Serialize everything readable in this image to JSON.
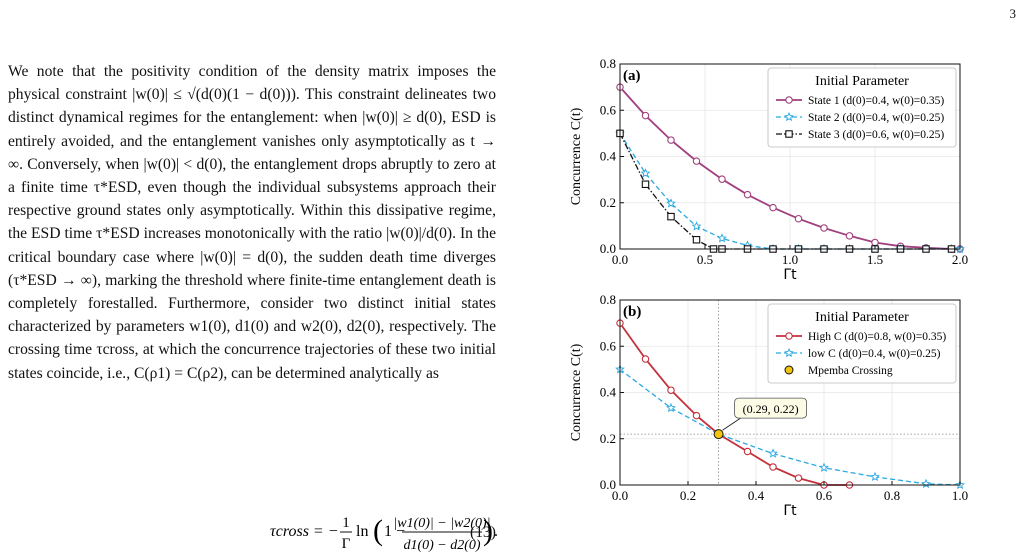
{
  "page_number": "3",
  "paragraph": "We note that the positivity condition of the density matrix imposes the physical constraint |w(0)| ≤ √(d(0)(1 − d(0))). This constraint delineates two distinct dynamical regimes for the entanglement: when |w(0)| ≥ d(0), ESD is entirely avoided, and the entanglement vanishes only asymptotically as t → ∞. Conversely, when |w(0)| < d(0), the entanglement drops abruptly to zero at a finite time τ*ESD, even though the individual subsystems approach their respective ground states only asymptotically. Within this dissipative regime, the ESD time τ*ESD increases monotonically with the ratio |w(0)|/d(0). In the critical boundary case where |w(0)| = d(0), the sudden death time diverges (τ*ESD → ∞), marking the threshold where finite-time entanglement death is completely forestalled. Furthermore, consider two distinct initial states characterized by parameters w1(0), d1(0) and w2(0), d2(0), respectively. The crossing time τcross, at which the concurrence trajectories of these two initial states coincide, i.e., C(ρ1) = C(ρ2), can be determined analytically as",
  "equation": {
    "lhs": "τcross = −",
    "frac_num": "1",
    "frac_den": "Γ",
    "ln": "ln",
    "inner_one": "1 −",
    "inner_num": "|w1(0)| − |w2(0)|",
    "inner_den": "d1(0) − d2(0)",
    "tail": ".",
    "number": "(13)"
  },
  "colors": {
    "state1": "#a0407e",
    "state2": "#2aa8e0",
    "state3": "#111111",
    "high_c": "#c4303c",
    "low_c": "#2aa8e0",
    "mpemba_fill": "#f2c40f",
    "annotation_bg": "#fbfbe6"
  },
  "chart_data": [
    {
      "type": "line",
      "panel_label": "(a)",
      "xlabel": "Γt",
      "ylabel": "Concurrence C(t)",
      "xlim": [
        0,
        2.0
      ],
      "ylim": [
        0,
        0.8
      ],
      "xticks": [
        "0.0",
        "0.5",
        "1.0",
        "1.5",
        "2.0"
      ],
      "yticks": [
        "0.0",
        "0.2",
        "0.4",
        "0.6",
        "0.8"
      ],
      "grid": true,
      "legend_title": "Initial Parameter",
      "legend_position": "top-right",
      "series": [
        {
          "name": "State 1 (d(0)=0.4, w(0)=0.35)",
          "marker": "circle",
          "style": "solid",
          "color_key": "state1",
          "x": [
            0,
            0.15,
            0.3,
            0.45,
            0.6,
            0.75,
            0.9,
            1.05,
            1.2,
            1.35,
            1.5,
            1.65,
            1.8,
            1.95,
            2.0
          ],
          "y": [
            0.7,
            0.577,
            0.471,
            0.38,
            0.302,
            0.235,
            0.179,
            0.131,
            0.091,
            0.057,
            0.028,
            0.012,
            0.005,
            0.0,
            0.0
          ]
        },
        {
          "name": "State 2 (d(0)=0.4, w(0)=0.25)",
          "marker": "star",
          "style": "dashed",
          "color_key": "state2",
          "x": [
            0,
            0.15,
            0.3,
            0.45,
            0.6,
            0.75,
            0.9,
            1.05,
            1.2,
            1.35,
            1.5,
            1.65,
            1.8,
            1.95,
            2.0
          ],
          "y": [
            0.5,
            0.327,
            0.197,
            0.098,
            0.046,
            0.015,
            0.0,
            0.0,
            0.0,
            0.0,
            0.0,
            0.0,
            0.0,
            0.0,
            0.0
          ]
        },
        {
          "name": "State 3 (d(0)=0.6, w(0)=0.25)",
          "marker": "square",
          "style": "dashdot",
          "color_key": "state3",
          "x": [
            0,
            0.15,
            0.3,
            0.45,
            0.55,
            0.6,
            0.75,
            0.9,
            1.05,
            1.2,
            1.35,
            1.5,
            1.65,
            1.8,
            1.95
          ],
          "y": [
            0.5,
            0.28,
            0.14,
            0.04,
            0.0,
            0.0,
            0.0,
            0.0,
            0.0,
            0.0,
            0.0,
            0.0,
            0.0,
            0.0,
            0.0
          ]
        }
      ]
    },
    {
      "type": "line",
      "panel_label": "(b)",
      "xlabel": "Γt",
      "ylabel": "Concurrence C(t)",
      "xlim": [
        0,
        1.0
      ],
      "ylim": [
        0,
        0.8
      ],
      "xticks": [
        "0.0",
        "0.2",
        "0.4",
        "0.6",
        "0.8",
        "1.0"
      ],
      "yticks": [
        "0.0",
        "0.2",
        "0.4",
        "0.6",
        "0.8"
      ],
      "grid": true,
      "legend_title": "Initial Parameter",
      "legend_position": "top-right",
      "series": [
        {
          "name": "High C (d(0)=0.8, w(0)=0.35)",
          "marker": "circle",
          "style": "solid",
          "color_key": "high_c",
          "x": [
            0,
            0.075,
            0.15,
            0.225,
            0.29,
            0.375,
            0.45,
            0.525,
            0.6,
            0.675
          ],
          "y": [
            0.7,
            0.545,
            0.41,
            0.3,
            0.22,
            0.145,
            0.078,
            0.03,
            0.0,
            0.0
          ]
        },
        {
          "name": "low C (d(0)=0.4, w(0)=0.25)",
          "marker": "star",
          "style": "dashed",
          "color_key": "low_c",
          "x": [
            0,
            0.15,
            0.29,
            0.45,
            0.6,
            0.75,
            0.9,
            1.0
          ],
          "y": [
            0.5,
            0.333,
            0.22,
            0.136,
            0.075,
            0.035,
            0.005,
            0.0
          ]
        }
      ],
      "crossing": {
        "label": "Mpemba Crossing",
        "x": 0.29,
        "y": 0.22,
        "annotation": "(0.29, 0.22)"
      }
    }
  ]
}
